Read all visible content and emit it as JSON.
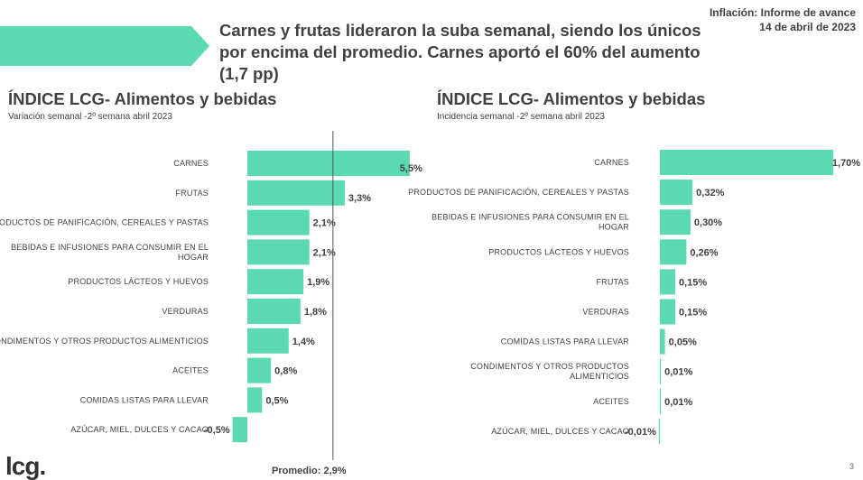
{
  "header": {
    "headline": "Carnes y frutas lideraron la suba semanal, siendo los únicos por encima del promedio. Carnes aportó el 60% del aumento (1,7 pp)",
    "report_title": "Inflación: Informe de avance",
    "report_date": "14 de abril de 2023"
  },
  "colors": {
    "bar": "#5ad9b2",
    "banner": "#5ad9b2",
    "reference_line": "#555555",
    "text": "#404040"
  },
  "chart_data": [
    {
      "type": "bar",
      "orientation": "horizontal",
      "title": "ÍNDICE LCG- Alimentos y bebidas",
      "subtitle": "Variación semanal -2º semana abril 2023",
      "categories": [
        "CARNES",
        "FRUTAS",
        "PRODUCTOS DE PANIFICACIÓN, CEREALES Y PASTAS",
        "BEBIDAS E INFUSIONES PARA CONSUMIR EN EL HOGAR",
        "PRODUCTOS LÁCTEOS Y HUEVOS",
        "VERDURAS",
        "CONDIMENTOS Y OTROS PRODUCTOS ALIMENTICIOS",
        "ACEITES",
        "COMIDAS LISTAS PARA LLEVAR",
        "AZÚCAR, MIEL, DULCES Y CACAO"
      ],
      "category_lines": [
        [
          "CARNES"
        ],
        [
          "FRUTAS"
        ],
        [
          "PRODUCTOS DE PANIFICACIÓN, CEREALES Y PASTAS"
        ],
        [
          "BEBIDAS E INFUSIONES PARA CONSUMIR EN EL",
          "HOGAR"
        ],
        [
          "PRODUCTOS LÁCTEOS Y HUEVOS"
        ],
        [
          "VERDURAS"
        ],
        [
          "CONDIMENTOS Y OTROS PRODUCTOS ALIMENTICIOS"
        ],
        [
          "ACEITES"
        ],
        [
          "COMIDAS LISTAS PARA LLEVAR"
        ],
        [
          "AZÚCAR, MIEL, DULCES Y CACAO"
        ]
      ],
      "values": [
        5.5,
        3.3,
        2.1,
        2.1,
        1.9,
        1.8,
        1.4,
        0.8,
        0.5,
        -0.5
      ],
      "value_labels": [
        "5,5%",
        "3,3%",
        "2,1%",
        "2,1%",
        "1,9%",
        "1,8%",
        "1,4%",
        "0,8%",
        "0,5%",
        "-0,5%"
      ],
      "reference_line": {
        "value": 2.9,
        "label": "Promedio: 2,9%"
      },
      "xlabel": "",
      "ylabel": "",
      "grid": false,
      "legend": "none"
    },
    {
      "type": "bar",
      "orientation": "horizontal",
      "title": "ÍNDICE LCG- Alimentos y bebidas",
      "subtitle": "Incidencia semanal -2º semana abril 2023",
      "categories": [
        "CARNES",
        "PRODUCTOS DE PANIFICACIÓN, CEREALES Y PASTAS",
        "BEBIDAS E INFUSIONES PARA CONSUMIR EN EL HOGAR",
        "PRODUCTOS LÁCTEOS Y HUEVOS",
        "FRUTAS",
        "VERDURAS",
        "COMIDAS LISTAS PARA LLEVAR",
        "CONDIMENTOS Y OTROS PRODUCTOS ALIMENTICIOS",
        "ACEITES",
        "AZÚCAR, MIEL, DULCES Y CACAO"
      ],
      "category_lines": [
        [
          "CARNES"
        ],
        [
          "PRODUCTOS DE PANIFICACIÓN, CEREALES Y PASTAS"
        ],
        [
          "BEBIDAS E INFUSIONES PARA CONSUMIR EN EL",
          "HOGAR"
        ],
        [
          "PRODUCTOS LÁCTEOS Y HUEVOS"
        ],
        [
          "FRUTAS"
        ],
        [
          "VERDURAS"
        ],
        [
          "COMIDAS LISTAS PARA LLEVAR"
        ],
        [
          "CONDIMENTOS Y OTROS PRODUCTOS",
          "ALIMENTICIOS"
        ],
        [
          "ACEITES"
        ],
        [
          "AZÚCAR, MIEL, DULCES Y CACAO"
        ]
      ],
      "values": [
        1.7,
        0.32,
        0.3,
        0.26,
        0.15,
        0.15,
        0.05,
        0.01,
        0.01,
        -0.01
      ],
      "value_labels": [
        "1,70%",
        "0,32%",
        "0,30%",
        "0,26%",
        "0,15%",
        "0,15%",
        "0,05%",
        "0,01%",
        "0,01%",
        "-0,01%"
      ],
      "xlabel": "",
      "ylabel": "",
      "grid": false,
      "legend": "none"
    }
  ],
  "footer": {
    "logo": "lcg.",
    "page_number": "3"
  }
}
